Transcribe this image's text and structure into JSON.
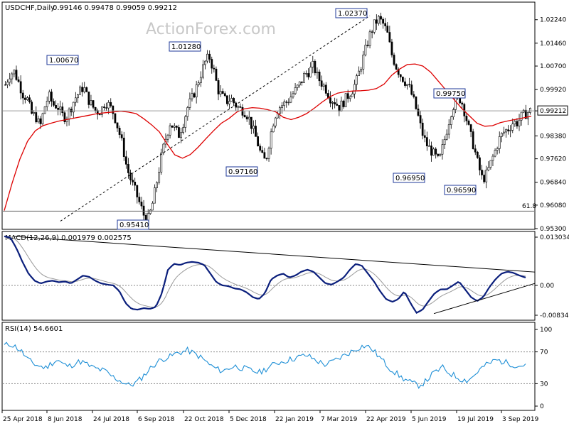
{
  "header": {
    "symbol": "USDCHF,Daily",
    "ohlc": "0.99146 0.99478 0.99059 0.99212",
    "watermark": "ActionForex.com"
  },
  "chart_data": [
    {
      "type": "candlestick",
      "title": "USDCHF,Daily",
      "ylim": [
        0.953,
        1.028
      ],
      "y_ticks": [
        "1.02240",
        "1.01460",
        "1.00700",
        "0.99920",
        "0.99212",
        "0.98380",
        "0.97620",
        "0.96840",
        "0.96080",
        "0.95300"
      ],
      "current_price": 0.99212,
      "current_price_label": "0.99212",
      "fib_level": {
        "label": "61.8",
        "value": 0.9588
      },
      "annotations": [
        {
          "label": "1.00670",
          "value": 1.0067
        },
        {
          "label": "0.95410",
          "value": 0.9541
        },
        {
          "label": "1.01280",
          "value": 1.0128
        },
        {
          "label": "0.97160",
          "value": 0.9716
        },
        {
          "label": "1.02370",
          "value": 1.0237
        },
        {
          "label": "0.96950",
          "value": 0.9695
        },
        {
          "label": "0.99750",
          "value": 0.9975
        },
        {
          "label": "0.96590",
          "value": 0.9659
        }
      ],
      "x_ticks": [
        "25 Apr 2018",
        "8 Jun 2018",
        "24 Jul 2018",
        "6 Sep 2018",
        "22 Oct 2018",
        "5 Dec 2018",
        "22 Jan 2019",
        "7 Mar 2019",
        "22 Apr 2019",
        "5 Jun 2019",
        "19 Jul 2019",
        "3 Sep 2019"
      ],
      "close_path": [
        1.0008,
        1.0042,
        1.0052,
        1.0018,
        0.9978,
        0.9962,
        0.9912,
        0.9902,
        0.9868,
        0.9932,
        0.9972,
        0.9942,
        0.9938,
        0.9908,
        0.9898,
        0.9928,
        0.9962,
        0.9982,
        1.0002,
        0.9962,
        0.9938,
        0.9918,
        0.9922,
        0.9952,
        0.9938,
        0.9912,
        0.9862,
        0.9808,
        0.9732,
        0.9688,
        0.9652,
        0.9612,
        0.9572,
        0.9562,
        0.9618,
        0.9692,
        0.9772,
        0.9832,
        0.9882,
        0.9862,
        0.9842,
        0.9882,
        0.9932,
        0.9962,
        0.9998,
        1.0042,
        1.0082,
        1.0102,
        1.0058,
        0.9992,
        0.9968,
        0.9952,
        0.9962,
        0.9942,
        0.9928,
        0.9922,
        0.9902,
        0.9862,
        0.9822,
        0.9772,
        0.9752,
        0.9832,
        0.9902,
        0.9932,
        0.9942,
        0.9952,
        0.9972,
        0.9992,
        1.0012,
        1.0042,
        1.0052,
        1.0072,
        1.0032,
        1.0012,
        0.9992,
        0.9962,
        0.9952,
        0.9932,
        0.9952,
        0.9972,
        0.9992,
        1.0022,
        1.0072,
        1.0122,
        1.0172,
        1.0207,
        1.0227,
        1.0212,
        1.0182,
        1.0112,
        1.0072,
        1.0042,
        1.0022,
        1.0002,
        0.9962,
        0.9912,
        0.9852,
        0.9812,
        0.9792,
        0.9772,
        0.9752,
        0.9812,
        0.9872,
        0.9932,
        0.9955,
        0.9962,
        0.9912,
        0.9852,
        0.9802,
        0.9742,
        0.9692,
        0.9712,
        0.9752,
        0.9792,
        0.9832,
        0.9852,
        0.9862,
        0.9882,
        0.9882,
        0.9902,
        0.9912,
        0.9921
      ],
      "ma_path": [
        0.959,
        0.968,
        0.976,
        0.982,
        0.9855,
        0.9872,
        0.988,
        0.9887,
        0.9892,
        0.9897,
        0.9902,
        0.9907,
        0.9912,
        0.9915,
        0.9917,
        0.992,
        0.9917,
        0.9912,
        0.9895,
        0.9875,
        0.9852,
        0.9812,
        0.9775,
        0.9764,
        0.9776,
        0.98,
        0.9828,
        0.9855,
        0.988,
        0.9896,
        0.9917,
        0.9928,
        0.9932,
        0.993,
        0.9925,
        0.9918,
        0.99,
        0.9892,
        0.99,
        0.9912,
        0.993,
        0.995,
        0.9968,
        0.998,
        0.9985,
        0.9987,
        0.9988,
        0.999,
        0.9995,
        1.001,
        1.004,
        1.006,
        1.0075,
        1.0077,
        1.007,
        1.005,
        1.002,
        0.999,
        0.996,
        0.993,
        0.9905,
        0.988,
        0.987,
        0.9872,
        0.9882,
        0.9888,
        0.9893,
        0.9898,
        0.9903
      ],
      "trendline_up": {
        "from": 0.9555,
        "to": 1.0237
      },
      "panels": {
        "macd": {
          "title": "MACD(12,26,9) 0.001979 0.002575",
          "ylim": [
            -0.00834,
            0.013034
          ],
          "y_ticks": [
            "0.013034",
            "0.00",
            "-0.00834"
          ],
          "macd_path": [
            0.0125,
            0.0122,
            0.0095,
            0.006,
            0.003,
            0.0012,
            0.0005,
            0.001,
            0.0012,
            0.0008,
            0.001,
            0.0005,
            0.0015,
            0.0025,
            0.0022,
            0.0012,
            0.0005,
            0.0002,
            0.0,
            -0.0015,
            -0.0045,
            -0.006,
            -0.0062,
            -0.0058,
            -0.006,
            -0.0055,
            -0.002,
            0.004,
            0.0055,
            0.0052,
            0.0058,
            0.006,
            0.0058,
            0.0052,
            0.003,
            0.0008,
            0.0,
            -0.0002,
            -0.0008,
            -0.001,
            -0.0018,
            -0.003,
            -0.0035,
            -0.002,
            0.0015,
            0.0025,
            0.003,
            0.002,
            0.0025,
            0.0035,
            0.004,
            0.0035,
            0.002,
            0.0005,
            0.0002,
            0.001,
            0.002,
            0.004,
            0.0055,
            0.005,
            0.003,
            0.001,
            -0.0015,
            -0.0035,
            -0.0042,
            -0.0035,
            -0.0015,
            -0.0045,
            -0.007,
            -0.0062,
            -0.004,
            -0.002,
            -0.001,
            -0.001,
            0.0,
            0.001,
            -0.001,
            -0.003,
            -0.004,
            -0.003,
            -0.0005,
            0.0015,
            0.003,
            0.0035,
            0.0032,
            0.0025,
            0.002
          ],
          "descending_line": {
            "from": 0.0125,
            "to": 0.0034
          },
          "rising_line": {
            "from": -0.0072,
            "to": 0.0005
          }
        },
        "rsi": {
          "title": "RSI(14) 54.6601",
          "ylim": [
            0,
            100
          ],
          "y_ticks": [
            100,
            70,
            30,
            0
          ],
          "levels": [
            70,
            30
          ],
          "current_value": 54.6601,
          "rsi_path": [
            78,
            80,
            76,
            70,
            60,
            55,
            52,
            50,
            56,
            60,
            54,
            52,
            56,
            58,
            54,
            50,
            48,
            46,
            40,
            36,
            32,
            28,
            30,
            36,
            44,
            52,
            58,
            62,
            64,
            68,
            70,
            72,
            68,
            64,
            58,
            52,
            48,
            46,
            50,
            52,
            50,
            48,
            46,
            44,
            48,
            52,
            56,
            58,
            60,
            62,
            64,
            66,
            62,
            58,
            54,
            56,
            60,
            64,
            68,
            72,
            76,
            78,
            74,
            66,
            58,
            50,
            44,
            38,
            34,
            30,
            28,
            32,
            40,
            46,
            50,
            44,
            40,
            36,
            34,
            38,
            46,
            52,
            56,
            60,
            58,
            56,
            54,
            52,
            55
          ]
        }
      }
    }
  ]
}
